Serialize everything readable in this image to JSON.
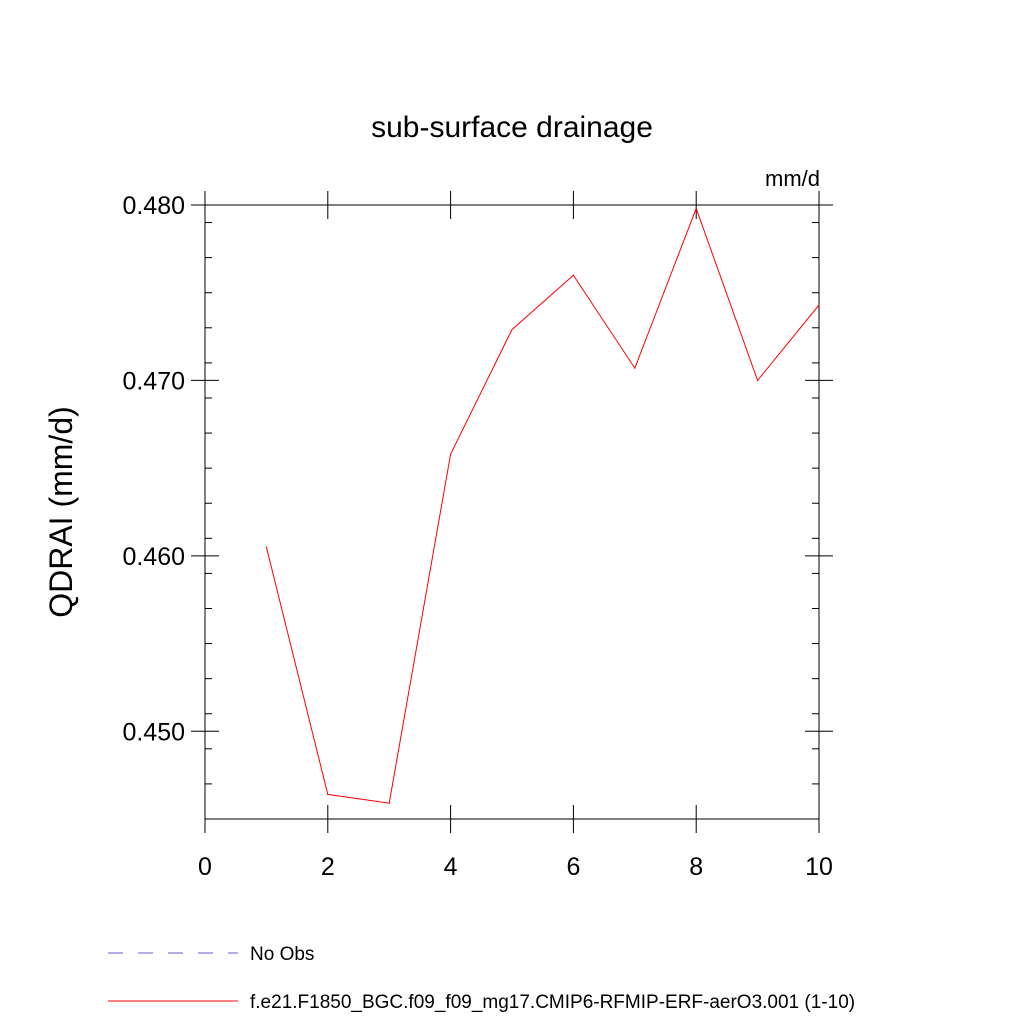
{
  "chart_data": {
    "type": "line",
    "title": "sub-surface drainage",
    "units": "mm/d",
    "xlabel": "",
    "ylabel": "QDRAI  (mm/d)",
    "xlim": [
      0,
      10
    ],
    "ylim": [
      0.445,
      0.48
    ],
    "x_ticks": [
      0,
      2,
      4,
      6,
      8,
      10
    ],
    "x_tick_labels": [
      "0",
      "2",
      "4",
      "6",
      "8",
      "10"
    ],
    "y_ticks": [
      0.45,
      0.46,
      0.47,
      0.48
    ],
    "y_tick_labels": [
      "0.450",
      "0.460",
      "0.470",
      "0.480"
    ],
    "grid": false,
    "legend_position": "bottom",
    "series": [
      {
        "name": "f.e21.F1850_BGC.f09_f09_mg17.CMIP6-RFMIP-ERF-aerO3.001 (1-10)",
        "color": "#ff0000",
        "dash": "solid",
        "x": [
          1,
          2,
          3,
          4,
          5,
          6,
          7,
          8,
          9,
          10
        ],
        "y": [
          0.4605,
          0.4464,
          0.4459,
          0.4658,
          0.4729,
          0.476,
          0.4707,
          0.4798,
          0.47,
          0.4743
        ]
      }
    ],
    "legend": [
      {
        "label": "No Obs",
        "color": "#6a5acd",
        "dash": "dashed"
      },
      {
        "label": "f.e21.F1850_BGC.f09_f09_mg17.CMIP6-RFMIP-ERF-aerO3.001 (1-10)",
        "color": "#ff0000",
        "dash": "solid"
      }
    ]
  }
}
